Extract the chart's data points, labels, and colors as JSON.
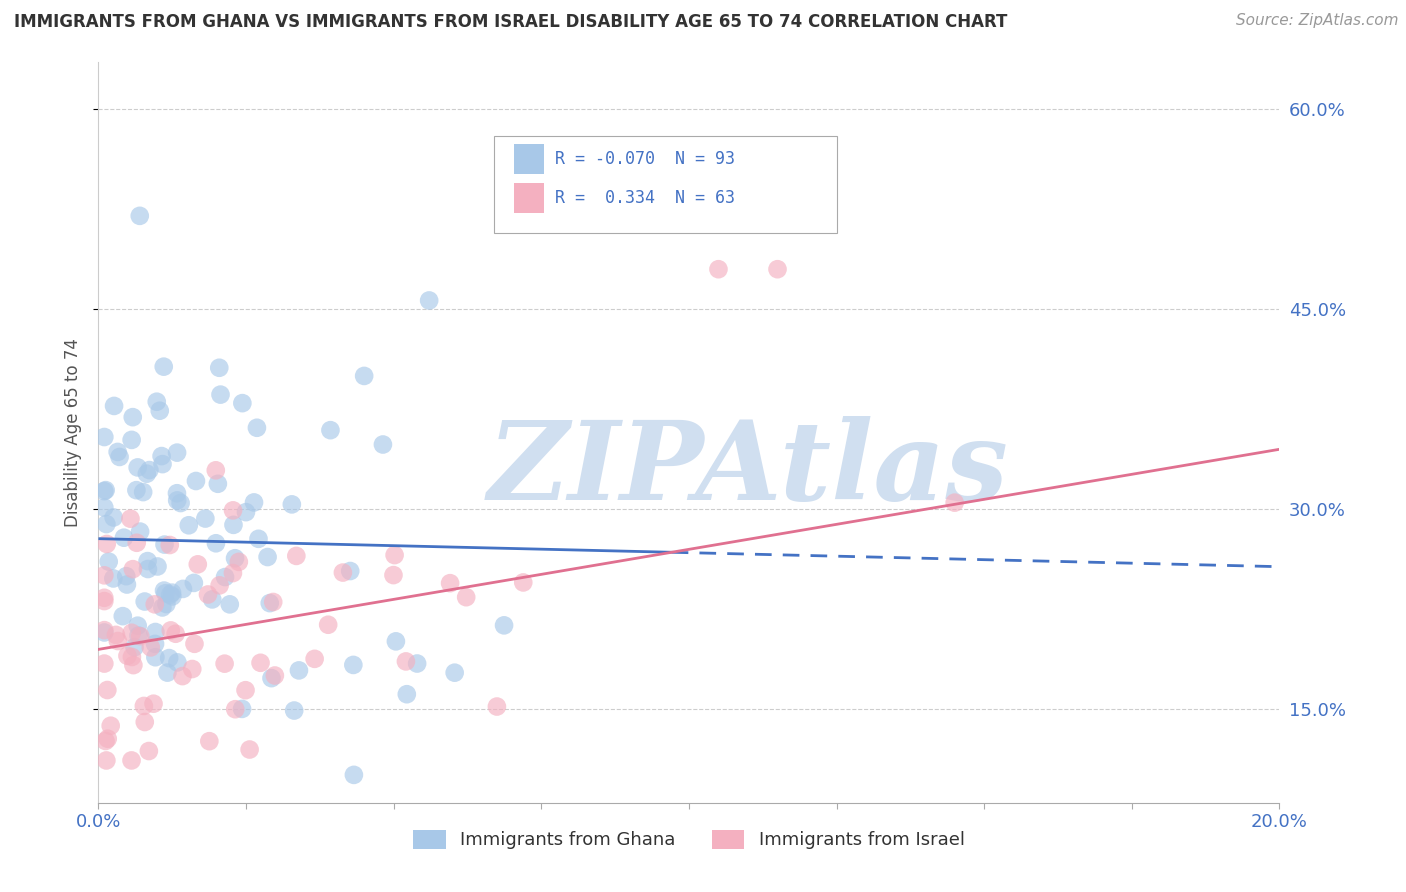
{
  "title": "IMMIGRANTS FROM GHANA VS IMMIGRANTS FROM ISRAEL DISABILITY AGE 65 TO 74 CORRELATION CHART",
  "source": "Source: ZipAtlas.com",
  "ylabel": "Disability Age 65 to 74",
  "xlim": [
    0.0,
    0.2
  ],
  "ylim": [
    0.08,
    0.635
  ],
  "ghana_color": "#a8c8e8",
  "israel_color": "#f4b0c0",
  "ghana_R": -0.07,
  "ghana_N": 93,
  "israel_R": 0.334,
  "israel_N": 63,
  "ghana_line_color": "#4472c4",
  "israel_line_color": "#e07090",
  "ghana_line_solid_end": 0.2,
  "watermark": "ZIPAtlas",
  "watermark_color": "#d0dff0",
  "y_ticks": [
    0.15,
    0.3,
    0.45,
    0.6
  ],
  "y_tick_labels": [
    "15.0%",
    "30.0%",
    "45.0%",
    "60.0%"
  ],
  "tick_color": "#4472c4",
  "title_fontsize": 12,
  "source_fontsize": 11,
  "axis_label_fontsize": 12,
  "tick_fontsize": 13
}
